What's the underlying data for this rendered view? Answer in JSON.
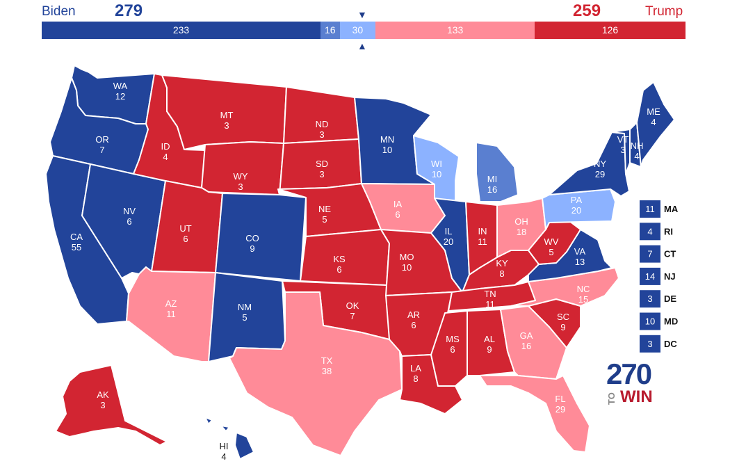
{
  "header": {
    "dem_name": "Biden",
    "dem_total": "279",
    "rep_name": "Trump",
    "rep_total": "259",
    "marker_down": "▼",
    "marker_up": "▲"
  },
  "tally": [
    {
      "id": "safe-d",
      "label": "233",
      "value": 233,
      "color": "#22449a"
    },
    {
      "id": "likely-d",
      "label": "16",
      "value": 16,
      "color": "#5a7fd0"
    },
    {
      "id": "lean-d",
      "label": "30",
      "value": 30,
      "color": "#8cb2ff"
    },
    {
      "id": "lean-r",
      "label": "133",
      "value": 133,
      "color": "#ff8b98"
    },
    {
      "id": "safe-r",
      "label": "126",
      "value": 126,
      "color": "#d22532"
    }
  ],
  "colors": {
    "safe_d": "#22449a",
    "likely_d": "#5a7fd0",
    "lean_d": "#8cb2ff",
    "lean_r": "#ff8b98",
    "safe_r": "#d22532"
  },
  "states": [
    {
      "abbr": "WA",
      "ev": "12",
      "rating": "safe_d"
    },
    {
      "abbr": "OR",
      "ev": "7",
      "rating": "safe_d"
    },
    {
      "abbr": "CA",
      "ev": "55",
      "rating": "safe_d"
    },
    {
      "abbr": "NV",
      "ev": "6",
      "rating": "safe_d"
    },
    {
      "abbr": "ID",
      "ev": "4",
      "rating": "safe_r"
    },
    {
      "abbr": "MT",
      "ev": "3",
      "rating": "safe_r"
    },
    {
      "abbr": "WY",
      "ev": "3",
      "rating": "safe_r"
    },
    {
      "abbr": "UT",
      "ev": "6",
      "rating": "safe_r"
    },
    {
      "abbr": "CO",
      "ev": "9",
      "rating": "safe_d"
    },
    {
      "abbr": "AZ",
      "ev": "11",
      "rating": "lean_r"
    },
    {
      "abbr": "NM",
      "ev": "5",
      "rating": "safe_d"
    },
    {
      "abbr": "ND",
      "ev": "3",
      "rating": "safe_r"
    },
    {
      "abbr": "SD",
      "ev": "3",
      "rating": "safe_r"
    },
    {
      "abbr": "NE",
      "ev": "5",
      "rating": "safe_r"
    },
    {
      "abbr": "KS",
      "ev": "6",
      "rating": "safe_r"
    },
    {
      "abbr": "OK",
      "ev": "7",
      "rating": "safe_r"
    },
    {
      "abbr": "TX",
      "ev": "38",
      "rating": "lean_r"
    },
    {
      "abbr": "MN",
      "ev": "10",
      "rating": "safe_d"
    },
    {
      "abbr": "IA",
      "ev": "6",
      "rating": "lean_r"
    },
    {
      "abbr": "MO",
      "ev": "10",
      "rating": "safe_r"
    },
    {
      "abbr": "AR",
      "ev": "6",
      "rating": "safe_r"
    },
    {
      "abbr": "LA",
      "ev": "8",
      "rating": "safe_r"
    },
    {
      "abbr": "WI",
      "ev": "10",
      "rating": "lean_d"
    },
    {
      "abbr": "IL",
      "ev": "20",
      "rating": "safe_d"
    },
    {
      "abbr": "MI",
      "ev": "16",
      "rating": "likely_d"
    },
    {
      "abbr": "IN",
      "ev": "11",
      "rating": "safe_r"
    },
    {
      "abbr": "OH",
      "ev": "18",
      "rating": "lean_r"
    },
    {
      "abbr": "KY",
      "ev": "8",
      "rating": "safe_r"
    },
    {
      "abbr": "TN",
      "ev": "11",
      "rating": "safe_r"
    },
    {
      "abbr": "MS",
      "ev": "6",
      "rating": "safe_r"
    },
    {
      "abbr": "AL",
      "ev": "9",
      "rating": "safe_r"
    },
    {
      "abbr": "GA",
      "ev": "16",
      "rating": "lean_r"
    },
    {
      "abbr": "FL",
      "ev": "29",
      "rating": "lean_r"
    },
    {
      "abbr": "SC",
      "ev": "9",
      "rating": "safe_r"
    },
    {
      "abbr": "NC",
      "ev": "15",
      "rating": "lean_r"
    },
    {
      "abbr": "VA",
      "ev": "13",
      "rating": "safe_d"
    },
    {
      "abbr": "WV",
      "ev": "5",
      "rating": "safe_r"
    },
    {
      "abbr": "PA",
      "ev": "20",
      "rating": "lean_d"
    },
    {
      "abbr": "NY",
      "ev": "29",
      "rating": "safe_d"
    },
    {
      "abbr": "VT",
      "ev": "3",
      "rating": "safe_d"
    },
    {
      "abbr": "NH",
      "ev": "4",
      "rating": "safe_d"
    },
    {
      "abbr": "ME",
      "ev": "4",
      "rating": "safe_d"
    },
    {
      "abbr": "AK",
      "ev": "3",
      "rating": "safe_r"
    },
    {
      "abbr": "HI",
      "ev": "4",
      "rating": "safe_d"
    }
  ],
  "small_states": [
    {
      "ev": "11",
      "abbr": "MA"
    },
    {
      "ev": "4",
      "abbr": "RI"
    },
    {
      "ev": "7",
      "abbr": "CT"
    },
    {
      "ev": "14",
      "abbr": "NJ"
    },
    {
      "ev": "3",
      "abbr": "DE"
    },
    {
      "ev": "10",
      "abbr": "MD"
    },
    {
      "ev": "3",
      "abbr": "DC"
    }
  ],
  "logo": {
    "number": "270",
    "to": "TO",
    "win": "WIN"
  }
}
